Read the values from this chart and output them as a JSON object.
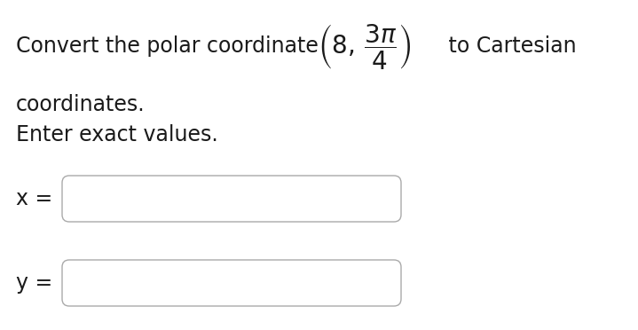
{
  "bg_color": "#ffffff",
  "text_color": "#1a1a1a",
  "box_edge_color": "#aaaaaa",
  "line1_prefix": "Convert the polar coordinate ",
  "line1_math": "$\\left(8,\\, \\dfrac{3\\pi}{4}\\right)$",
  "line1_suffix": " to Cartesian",
  "line2": "coordinates.",
  "line3": "Enter exact values.",
  "xlabel": "x =",
  "ylabel": "y =",
  "fontsize": 17,
  "math_fontsize": 17,
  "fig_width": 7.19,
  "fig_height": 3.72,
  "dpi": 100
}
